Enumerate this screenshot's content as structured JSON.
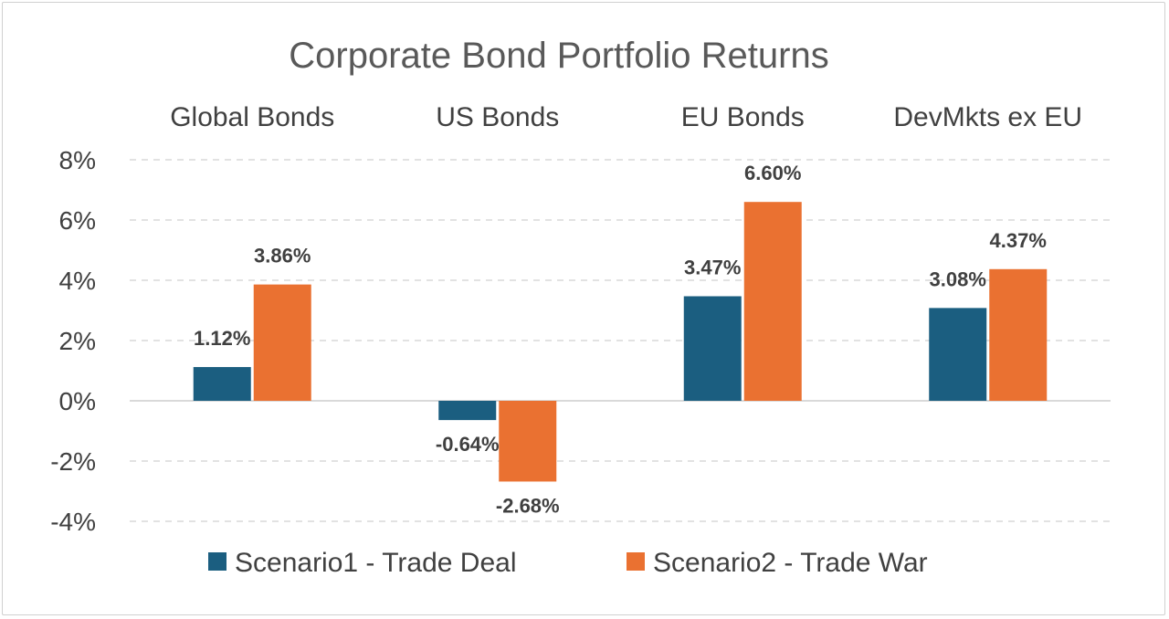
{
  "chart_data": {
    "type": "bar",
    "title": "Corporate Bond Portfolio Returns",
    "categories": [
      "Global Bonds",
      "US Bonds",
      "EU Bonds",
      "DevMkts ex EU"
    ],
    "series": [
      {
        "name": "Scenario1 - Trade Deal",
        "color": "#1b5e80",
        "values": [
          1.12,
          -0.64,
          3.47,
          3.08
        ],
        "labels": [
          "1.12%",
          "-0.64%",
          "3.47%",
          "3.08%"
        ]
      },
      {
        "name": "Scenario2 - Trade War",
        "color": "#ea7131",
        "values": [
          3.86,
          -2.68,
          6.6,
          4.37
        ],
        "labels": [
          "3.86%",
          "-2.68%",
          "6.60%",
          "4.37%"
        ]
      }
    ],
    "ylim": [
      -4,
      8
    ],
    "yticks": [
      8,
      6,
      4,
      2,
      0,
      -2,
      -4
    ],
    "ytick_labels": [
      "8%",
      "6%",
      "4%",
      "2%",
      "0%",
      "-2%",
      "-4%"
    ],
    "category_labels_position": "top",
    "legend_position": "bottom",
    "grid": true,
    "colors": {
      "gridline": "#d9d9d9",
      "zero_line": "#d9d9d9",
      "text": "#404040",
      "title": "#595959"
    }
  }
}
